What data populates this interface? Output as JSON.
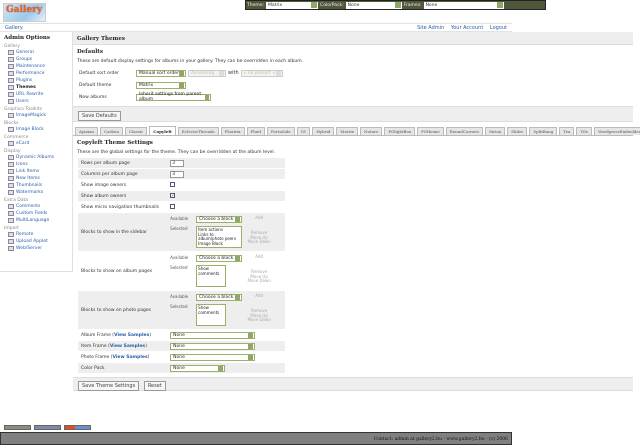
{
  "logo_text": "Gallery",
  "topbar": {
    "theme_label": "Theme:",
    "theme_value": "Matrix",
    "colorpack_label": "ColorPack:",
    "colorpack_value": "None",
    "frames_label": "Frames:",
    "frames_value": "None"
  },
  "nav": {
    "breadcrumb": "Gallery",
    "links": [
      "Site Admin",
      "Your Account",
      "Logout"
    ]
  },
  "sidebar": {
    "title": "Admin Options",
    "groups": [
      {
        "name": "Gallery",
        "items": [
          "General",
          "Groups",
          "Maintenance",
          "Performance",
          "Plugins",
          "Themes",
          "URL Rewrite",
          "Users"
        ]
      },
      {
        "name": "Graphics Toolkits",
        "items": [
          "ImageMagick"
        ]
      },
      {
        "name": "Blocks",
        "items": [
          "Image Block"
        ]
      },
      {
        "name": "Commerce",
        "items": [
          "eCard"
        ]
      },
      {
        "name": "Display",
        "items": [
          "Dynamic Albums",
          "Icons",
          "Link Items",
          "New Items",
          "Thumbnails",
          "Watermarks"
        ]
      },
      {
        "name": "Extra Data",
        "items": [
          "Comments",
          "Custom Fields",
          "MultiLanguage"
        ]
      },
      {
        "name": "Import",
        "items": [
          "Remote",
          "Upload Applet",
          "Web/Server"
        ]
      }
    ],
    "active": "Themes"
  },
  "main": {
    "title": "Gallery Themes",
    "defaults": {
      "heading": "Defaults",
      "description": "These are default display settings for albums in your gallery. They can be overridden in each album.",
      "sort_label": "Default sort order",
      "sort_value": "Manual sort order",
      "direction_value": "Ascending",
      "with_label": "with",
      "presort_value": "« no presort »",
      "theme_label": "Default theme",
      "theme_value": "Matrix",
      "new_albums_label": "New albums",
      "new_albums_value": "Inherit settings from parent album",
      "save_button": "Save Defaults"
    },
    "tabs": [
      "Ajaxian",
      "Carbon",
      "Classic",
      "Copyleft",
      "EclecticThreads",
      "Floatrix",
      "Fluid",
      "PortaSale",
      "G1",
      "Hybrid",
      "Matrix",
      "Nature",
      "PGlightBox",
      "PGtheme",
      "RoundCorners",
      "Siriux",
      "Slider",
      "SplitBang",
      "Tea",
      "Tile",
      "WordpressEmbedded"
    ],
    "active_tab": "Copyleft",
    "settings": {
      "heading": "Copyleft Theme Settings",
      "description": "These are the global settings for the theme. They can be overridden at the album level.",
      "rows_label": "Rows per album page",
      "rows_value": "3",
      "cols_label": "Columns per album page",
      "cols_value": "3",
      "image_owners_label": "Show image owners",
      "image_owners": false,
      "album_owners_label": "Show album owners",
      "album_owners": true,
      "micro_nav_label": "Show micro navigation thumbnails",
      "micro_nav": false,
      "available_label": "Available",
      "selected_label": "Selected",
      "choose_block": "Choose a block",
      "add": "Add",
      "remove": "Remove",
      "move_up": "Move Up",
      "move_down": "Move Down",
      "sidebar_blocks_label": "Blocks to show in the sidebar",
      "sidebar_blocks": [
        "Item actions",
        "Links to album/photo peers",
        "Image Block"
      ],
      "album_blocks_label": "Blocks to show on album pages",
      "album_blocks": [
        "Show comments"
      ],
      "photo_blocks_label": "Blocks to show on photo pages",
      "photo_blocks": [
        "Show comments"
      ],
      "view_samples": "View Samples",
      "album_frame_label": "Album Frame",
      "album_frame": "None",
      "item_frame_label": "Item Frame",
      "item_frame": "None",
      "photo_frame_label": "Photo Frame",
      "photo_frame": "None",
      "color_pack_label": "Color Pack",
      "color_pack": "None",
      "save_button": "Save Theme Settings",
      "reset_button": "Reset"
    }
  },
  "footer": "Contact: admin at gallery2.hu - www.gallery2.hu - (c) 2006"
}
